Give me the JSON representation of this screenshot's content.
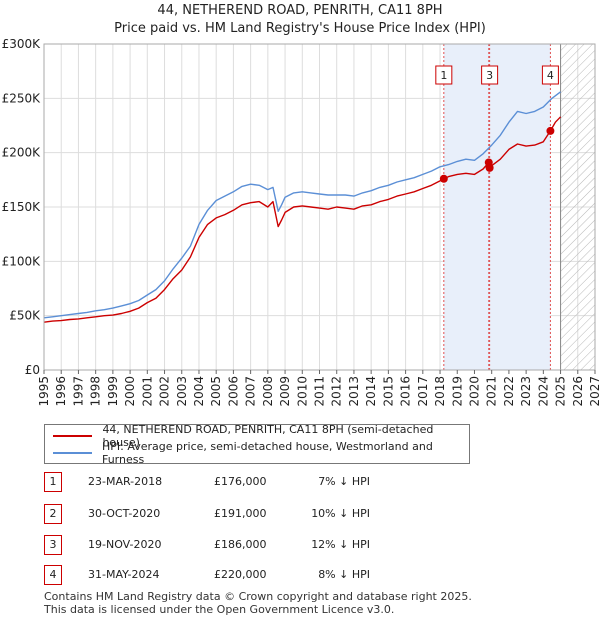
{
  "header": {
    "title_line1": "44, NETHEREND ROAD, PENRITH, CA11 8PH",
    "title_line2": "Price paid vs. HM Land Registry's House Price Index (HPI)"
  },
  "colors": {
    "property": "#cc0000",
    "hpi": "#5b8fd6",
    "shade": "#e8effa",
    "marker_line": "#e05050",
    "hatch": "#b8b8b8"
  },
  "legend": {
    "property_label": "44, NETHEREND ROAD, PENRITH, CA11 8PH (semi-detached house)",
    "hpi_label": "HPI: Average price, semi-detached house, Westmorland and Furness"
  },
  "transactions": [
    {
      "id": "1",
      "date": "23-MAR-2018",
      "price": "£176,000",
      "hpi_diff": "7% ↓ HPI"
    },
    {
      "id": "2",
      "date": "30-OCT-2020",
      "price": "£191,000",
      "hpi_diff": "10% ↓ HPI"
    },
    {
      "id": "3",
      "date": "19-NOV-2020",
      "price": "£186,000",
      "hpi_diff": "12% ↓ HPI"
    },
    {
      "id": "4",
      "date": "31-MAY-2024",
      "price": "£220,000",
      "hpi_diff": "8% ↓ HPI"
    }
  ],
  "footer": {
    "line1": "Contains HM Land Registry data © Crown copyright and database right 2025.",
    "line2": "This data is licensed under the Open Government Licence v3.0."
  },
  "chart_data": {
    "type": "line",
    "title": "44, NETHEREND ROAD, PENRITH, CA11 8PH",
    "subtitle": "Price paid vs. HM Land Registry's House Price Index (HPI)",
    "xlabel": "",
    "ylabel": "",
    "xlim": [
      1995,
      2027
    ],
    "ylim": [
      0,
      300000
    ],
    "grid": true,
    "legend_position": "bottom-left",
    "y_ticks": [
      {
        "value": 0,
        "label": "£0"
      },
      {
        "value": 50000,
        "label": "£50K"
      },
      {
        "value": 100000,
        "label": "£100K"
      },
      {
        "value": 150000,
        "label": "£150K"
      },
      {
        "value": 200000,
        "label": "£200K"
      },
      {
        "value": 250000,
        "label": "£250K"
      },
      {
        "value": 300000,
        "label": "£300K"
      }
    ],
    "x_ticks": [
      "1995",
      "1996",
      "1997",
      "1998",
      "1999",
      "2000",
      "2001",
      "2002",
      "2003",
      "2004",
      "2005",
      "2006",
      "2007",
      "2008",
      "2009",
      "2010",
      "2011",
      "2012",
      "2013",
      "2014",
      "2015",
      "2016",
      "2017",
      "2018",
      "2019",
      "2020",
      "2021",
      "2022",
      "2023",
      "2024",
      "2025",
      "2026",
      "2027"
    ],
    "shaded_span": [
      2018.22,
      2024.41
    ],
    "forecast_start": 2025.0,
    "markers": [
      {
        "label": "1",
        "x": 2018.22,
        "y": 176000
      },
      {
        "label": "2",
        "x": 2020.83,
        "y": 191000
      },
      {
        "label": "3",
        "x": 2020.88,
        "y": 186000
      },
      {
        "label": "4",
        "x": 2024.41,
        "y": 220000
      }
    ],
    "series": [
      {
        "name": "44, NETHEREND ROAD, PENRITH, CA11 8PH (semi-detached house)",
        "x": [
          1995.0,
          1995.5,
          1996.0,
          1996.5,
          1997.0,
          1997.5,
          1998.0,
          1998.5,
          1999.0,
          1999.5,
          2000.0,
          2000.5,
          2001.0,
          2001.5,
          2002.0,
          2002.5,
          2003.0,
          2003.5,
          2004.0,
          2004.5,
          2005.0,
          2005.5,
          2006.0,
          2006.5,
          2007.0,
          2007.5,
          2008.0,
          2008.3,
          2008.6,
          2008.8,
          2009.0,
          2009.5,
          2010.0,
          2010.5,
          2011.0,
          2011.5,
          2012.0,
          2012.5,
          2013.0,
          2013.5,
          2014.0,
          2014.5,
          2015.0,
          2015.5,
          2016.0,
          2016.5,
          2017.0,
          2017.5,
          2018.0,
          2018.22,
          2018.5,
          2019.0,
          2019.5,
          2020.0,
          2020.5,
          2020.83,
          2020.88,
          2021.0,
          2021.5,
          2022.0,
          2022.5,
          2023.0,
          2023.5,
          2024.0,
          2024.41,
          2024.7,
          2025.0
        ],
        "values": [
          44000,
          45000,
          45500,
          46500,
          47000,
          48000,
          49000,
          50000,
          50500,
          52000,
          54000,
          57000,
          62000,
          66000,
          74000,
          84000,
          92000,
          104000,
          122000,
          134000,
          140000,
          143000,
          147000,
          152000,
          154000,
          155000,
          150000,
          155000,
          132000,
          138000,
          145000,
          150000,
          151000,
          150000,
          149000,
          148000,
          150000,
          149000,
          148000,
          151000,
          152000,
          155000,
          157000,
          160000,
          162000,
          164000,
          167000,
          170000,
          174000,
          176000,
          178000,
          180000,
          181000,
          180000,
          185000,
          191000,
          186000,
          188000,
          194000,
          203000,
          208000,
          206000,
          207000,
          210000,
          220000,
          228000,
          233000
        ]
      },
      {
        "name": "HPI: Average price, semi-detached house, Westmorland and Furness",
        "x": [
          1995.0,
          1995.5,
          1996.0,
          1996.5,
          1997.0,
          1997.5,
          1998.0,
          1998.5,
          1999.0,
          1999.5,
          2000.0,
          2000.5,
          2001.0,
          2001.5,
          2002.0,
          2002.5,
          2003.0,
          2003.5,
          2004.0,
          2004.5,
          2005.0,
          2005.5,
          2006.0,
          2006.5,
          2007.0,
          2007.5,
          2008.0,
          2008.3,
          2008.6,
          2008.8,
          2009.0,
          2009.5,
          2010.0,
          2010.5,
          2011.0,
          2011.5,
          2012.0,
          2012.5,
          2013.0,
          2013.5,
          2014.0,
          2014.5,
          2015.0,
          2015.5,
          2016.0,
          2016.5,
          2017.0,
          2017.5,
          2018.0,
          2018.5,
          2019.0,
          2019.5,
          2020.0,
          2020.5,
          2021.0,
          2021.5,
          2022.0,
          2022.5,
          2023.0,
          2023.5,
          2024.0,
          2024.5,
          2025.0
        ],
        "values": [
          48000,
          49000,
          50000,
          51000,
          52000,
          53000,
          54500,
          55500,
          57000,
          59000,
          61000,
          64000,
          69000,
          74000,
          82000,
          93000,
          103000,
          114000,
          134000,
          147000,
          156000,
          160000,
          164000,
          169000,
          171000,
          170000,
          166000,
          168000,
          146000,
          152000,
          159000,
          163000,
          164000,
          163000,
          162000,
          161000,
          161000,
          161000,
          160000,
          163000,
          165000,
          168000,
          170000,
          173000,
          175000,
          177000,
          180000,
          183000,
          187000,
          189000,
          192000,
          194000,
          193000,
          199000,
          207000,
          216000,
          228000,
          238000,
          236000,
          238000,
          242000,
          250000,
          256000
        ]
      }
    ]
  }
}
